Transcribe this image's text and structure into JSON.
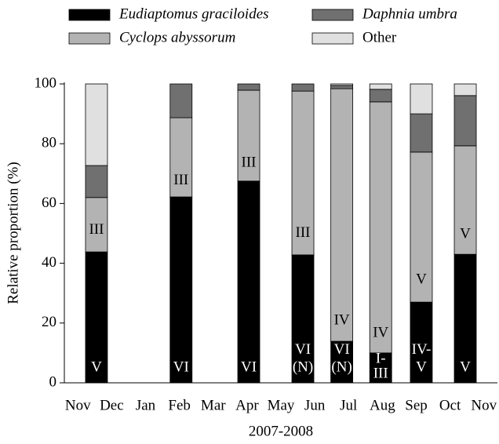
{
  "chart_data": {
    "type": "stacked_bar",
    "x_label": "2007-2008",
    "y_label": "Relative proportion (%)",
    "x": [
      0.55,
      3.05,
      5.05,
      6.65,
      7.8,
      8.95,
      10.15,
      11.45
    ],
    "xlim": [
      -0.4,
      12.4
    ],
    "xticks": [
      {
        "value": 0,
        "label": "Nov"
      },
      {
        "value": 1,
        "label": "Dec"
      },
      {
        "value": 2,
        "label": "Jan"
      },
      {
        "value": 3,
        "label": "Feb"
      },
      {
        "value": 4,
        "label": "Mar"
      },
      {
        "value": 5,
        "label": "Apr"
      },
      {
        "value": 6,
        "label": "May"
      },
      {
        "value": 7,
        "label": "Jun"
      },
      {
        "value": 8,
        "label": "Jul"
      },
      {
        "value": 9,
        "label": "Aug"
      },
      {
        "value": 10,
        "label": "Sep"
      },
      {
        "value": 11,
        "label": "Oct"
      },
      {
        "value": 12,
        "label": "Nov"
      }
    ],
    "ylim": [
      0,
      100
    ],
    "yticks": [
      0,
      20,
      40,
      60,
      80,
      100
    ],
    "series": [
      {
        "name": "Eudiaptomus graciloides",
        "color": "#000000",
        "italic": true,
        "values": [
          43.8,
          62.2,
          67.5,
          42.8,
          13.9,
          10,
          27,
          43
        ]
      },
      {
        "name": "Cyclops abyssorum",
        "color": "#b3b3b3",
        "italic": true,
        "values": [
          18.2,
          26.5,
          30.4,
          54.8,
          84.5,
          84,
          50.2,
          36.3
        ]
      },
      {
        "name": "Daphnia umbra",
        "color": "#707070",
        "italic": true,
        "values": [
          10.7,
          11.3,
          2.1,
          2.4,
          1.1,
          4.2,
          12.8,
          16.8
        ]
      },
      {
        "name": "Other",
        "color": "#e0e0e0",
        "italic": false,
        "values": [
          27.3,
          0,
          0,
          0,
          0.5,
          1.8,
          10,
          3.9
        ]
      }
    ],
    "annotations": [
      {
        "x": 0.55,
        "y": 51,
        "text": "III"
      },
      {
        "x": 0.55,
        "y": 5,
        "text": "V"
      },
      {
        "x": 3.05,
        "y": 67.5,
        "text": "III"
      },
      {
        "x": 3.05,
        "y": 5,
        "text": "VI"
      },
      {
        "x": 5.05,
        "y": 73.5,
        "text": "III"
      },
      {
        "x": 5.05,
        "y": 5,
        "text": "VI"
      },
      {
        "x": 6.65,
        "y": 50,
        "text": "III"
      },
      {
        "x": 6.65,
        "y": 10.8,
        "text": "VI"
      },
      {
        "x": 6.65,
        "y": 5,
        "text": "(N)"
      },
      {
        "x": 7.8,
        "y": 20.7,
        "text": "IV"
      },
      {
        "x": 7.8,
        "y": 10.8,
        "text": "VI"
      },
      {
        "x": 7.8,
        "y": 5,
        "text": "(N)"
      },
      {
        "x": 8.95,
        "y": 16.5,
        "text": "IV"
      },
      {
        "x": 8.95,
        "y": 7.8,
        "text": "I-"
      },
      {
        "x": 8.95,
        "y": 2.8,
        "text": "III"
      },
      {
        "x": 10.15,
        "y": 34.4,
        "text": "V"
      },
      {
        "x": 10.15,
        "y": 10.8,
        "text": "IV-"
      },
      {
        "x": 10.15,
        "y": 5,
        "text": "V"
      },
      {
        "x": 11.45,
        "y": 49.6,
        "text": "V"
      },
      {
        "x": 11.45,
        "y": 5,
        "text": "V"
      }
    ]
  }
}
